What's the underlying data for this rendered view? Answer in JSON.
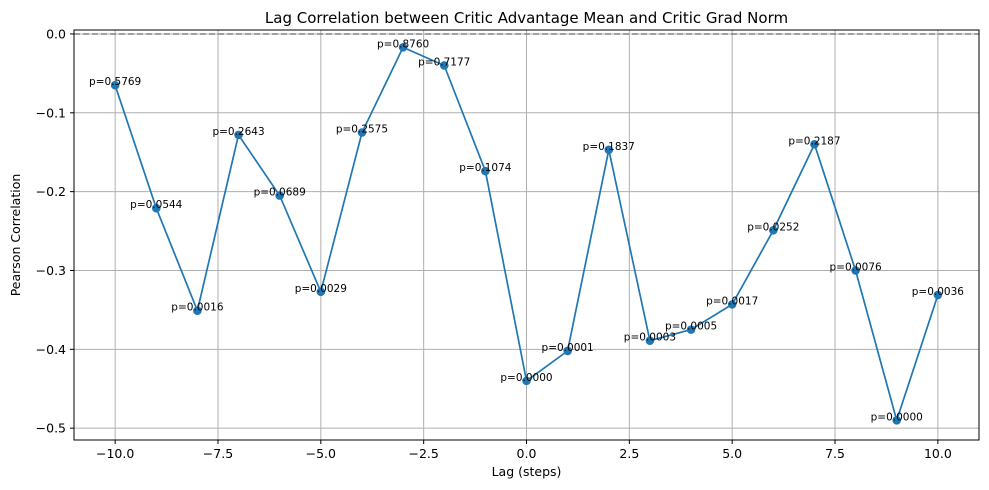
{
  "chart_data": {
    "type": "line",
    "title": "Lag Correlation between Critic Advantage Mean and Critic Grad Norm",
    "xlabel": "Lag (steps)",
    "ylabel": "Pearson Correlation",
    "xlim": [
      -11,
      11
    ],
    "ylim": [
      -0.515,
      0.005
    ],
    "xticks": [
      -10,
      -7.5,
      -5,
      -2.5,
      0,
      2.5,
      5,
      7.5,
      10
    ],
    "xtick_labels": [
      "−10.0",
      "−7.5",
      "−5.0",
      "−2.5",
      "0.0",
      "2.5",
      "5.0",
      "7.5",
      "10.0"
    ],
    "yticks": [
      0,
      -0.1,
      -0.2,
      -0.3,
      -0.4,
      -0.5
    ],
    "ytick_labels": [
      "0.0",
      "−0.1",
      "−0.2",
      "−0.3",
      "−0.4",
      "−0.5"
    ],
    "grid": true,
    "reference_line": {
      "y": 0,
      "style": "dashed",
      "color": "#808080"
    },
    "series": [
      {
        "color": "#1f77b4",
        "x": [
          -10,
          -9,
          -8,
          -7,
          -6,
          -5,
          -4,
          -3,
          -2,
          -1,
          0,
          1,
          2,
          3,
          4,
          5,
          6,
          7,
          8,
          9,
          10
        ],
        "y": [
          -0.065,
          -0.221,
          -0.351,
          -0.128,
          -0.205,
          -0.327,
          -0.125,
          -0.017,
          -0.04,
          -0.174,
          -0.44,
          -0.402,
          -0.147,
          -0.389,
          -0.375,
          -0.343,
          -0.249,
          -0.14,
          -0.3,
          -0.49,
          -0.331
        ],
        "labels": [
          "p=0.5769",
          "p=0.0544",
          "p=0.0016",
          "p=0.2643",
          "p=0.0689",
          "p=0.0029",
          "p=0.2575",
          "p=0.8760",
          "p=0.7177",
          "p=0.1074",
          "p=0.0000",
          "p=0.0001",
          "p=0.1837",
          "p=0.0003",
          "p=0.0005",
          "p=0.0017",
          "p=0.0252",
          "p=0.2187",
          "p=0.0076",
          "p=0.0000",
          "p=0.0036"
        ]
      }
    ]
  }
}
